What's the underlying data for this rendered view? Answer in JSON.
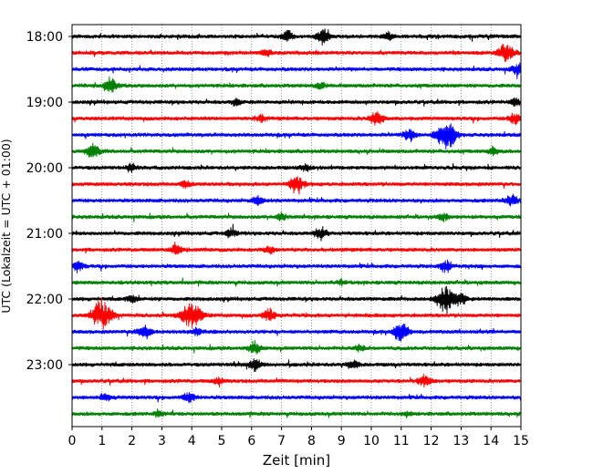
{
  "chart_data": {
    "type": "line",
    "title": "",
    "xlabel": "Zeit  [min]",
    "ylabel": "UTC (Lokalzeit = UTC + 01:00)",
    "xlim": [
      0,
      15
    ],
    "x_ticks": [
      "0",
      "1",
      "2",
      "3",
      "4",
      "5",
      "6",
      "7",
      "8",
      "9",
      "10",
      "11",
      "12",
      "13",
      "14",
      "15"
    ],
    "y_tick_labels": [
      "18:00",
      "19:00",
      "20:00",
      "21:00",
      "22:00",
      "23:00"
    ],
    "grid": "vertical dotted lines at each minute",
    "trace_interval_min": 15,
    "trace_colors": [
      "#000000",
      "#ff0000",
      "#0000ff",
      "#008000"
    ],
    "traces": [
      {
        "start": "18:00",
        "color": "#000000",
        "events": [
          [
            7.2,
            0.5
          ],
          [
            8.4,
            0.6
          ],
          [
            10.6,
            0.3
          ]
        ]
      },
      {
        "start": "18:15",
        "color": "#ff0000",
        "events": [
          [
            6.5,
            0.3
          ],
          [
            14.5,
            0.8
          ]
        ]
      },
      {
        "start": "18:30",
        "color": "#0000ff",
        "events": [
          [
            14.9,
            0.5
          ]
        ]
      },
      {
        "start": "18:45",
        "color": "#008000",
        "events": [
          [
            1.3,
            0.6
          ],
          [
            8.3,
            0.3
          ]
        ]
      },
      {
        "start": "19:00",
        "color": "#000000",
        "events": [
          [
            5.5,
            0.3
          ],
          [
            14.8,
            0.3
          ]
        ]
      },
      {
        "start": "19:15",
        "color": "#ff0000",
        "events": [
          [
            6.3,
            0.3
          ],
          [
            10.2,
            0.6
          ],
          [
            14.8,
            0.4
          ]
        ]
      },
      {
        "start": "19:30",
        "color": "#0000ff",
        "events": [
          [
            12.5,
            1.2
          ],
          [
            11.3,
            0.5
          ]
        ]
      },
      {
        "start": "19:45",
        "color": "#008000",
        "events": [
          [
            0.7,
            0.6
          ],
          [
            14.1,
            0.3
          ]
        ]
      },
      {
        "start": "20:00",
        "color": "#000000",
        "events": [
          [
            2.0,
            0.3
          ],
          [
            7.8,
            0.3
          ]
        ]
      },
      {
        "start": "20:15",
        "color": "#ff0000",
        "events": [
          [
            7.5,
            0.7
          ],
          [
            3.8,
            0.3
          ]
        ]
      },
      {
        "start": "20:30",
        "color": "#0000ff",
        "events": [
          [
            6.2,
            0.4
          ],
          [
            14.7,
            0.5
          ]
        ]
      },
      {
        "start": "20:45",
        "color": "#008000",
        "events": [
          [
            7.0,
            0.3
          ],
          [
            12.4,
            0.3
          ]
        ]
      },
      {
        "start": "21:00",
        "color": "#000000",
        "events": [
          [
            8.3,
            0.5
          ],
          [
            5.3,
            0.4
          ]
        ]
      },
      {
        "start": "21:15",
        "color": "#ff0000",
        "events": [
          [
            3.5,
            0.4
          ],
          [
            6.6,
            0.3
          ]
        ]
      },
      {
        "start": "21:30",
        "color": "#0000ff",
        "events": [
          [
            0.2,
            0.4
          ],
          [
            12.5,
            0.5
          ]
        ]
      },
      {
        "start": "21:45",
        "color": "#008000",
        "events": [
          [
            9.0,
            0.2
          ]
        ]
      },
      {
        "start": "22:00",
        "color": "#000000",
        "events": [
          [
            12.5,
            1.1
          ],
          [
            13.0,
            0.4
          ],
          [
            2.0,
            0.3
          ]
        ]
      },
      {
        "start": "22:15",
        "color": "#ff0000",
        "events": [
          [
            1.0,
            1.2
          ],
          [
            4.0,
            1.2
          ],
          [
            6.6,
            0.5
          ]
        ]
      },
      {
        "start": "22:30",
        "color": "#0000ff",
        "events": [
          [
            2.4,
            0.6
          ],
          [
            11.0,
            0.8
          ],
          [
            4.2,
            0.3
          ]
        ]
      },
      {
        "start": "22:45",
        "color": "#008000",
        "events": [
          [
            6.1,
            0.5
          ],
          [
            9.6,
            0.3
          ]
        ]
      },
      {
        "start": "23:00",
        "color": "#000000",
        "events": [
          [
            6.1,
            0.5
          ],
          [
            9.4,
            0.4
          ]
        ]
      },
      {
        "start": "23:15",
        "color": "#ff0000",
        "events": [
          [
            11.8,
            0.5
          ],
          [
            4.9,
            0.3
          ]
        ]
      },
      {
        "start": "23:30",
        "color": "#0000ff",
        "events": [
          [
            1.1,
            0.3
          ],
          [
            3.9,
            0.4
          ]
        ]
      },
      {
        "start": "23:45",
        "color": "#008000",
        "events": [
          [
            2.9,
            0.3
          ],
          [
            11.2,
            0.2
          ]
        ]
      }
    ]
  }
}
